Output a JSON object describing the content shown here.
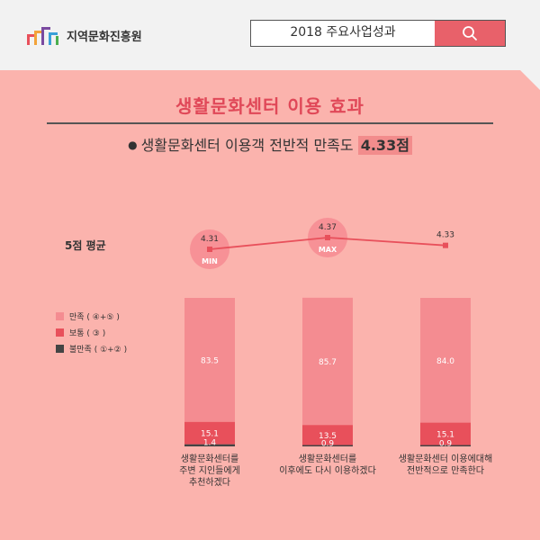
{
  "header": {
    "logo_text": "지역문화진흥원",
    "search_label": "2018 주요사업성과"
  },
  "title": "생활문화센터 이용 효과",
  "subtitle": {
    "prefix": "생활문화센터 이용객 전반적 만족도",
    "highlight": "4.33점"
  },
  "avg_label": "5점 평균",
  "colors": {
    "satisfied": "#f48c91",
    "neutral": "#e8505b",
    "dissatisfied": "#444444",
    "line": "#e8505b",
    "circle": "#f79196"
  },
  "chart_data": {
    "type": "bar",
    "stacked": true,
    "categories": [
      "생활문화센터를 주변 지인들에게 추천하겠다",
      "생활문화센터를 이후에도 다시 이용하겠다",
      "생활문화센터 이용에대해 전반적으로 만족한다"
    ],
    "category_lines": [
      [
        "생활문화센터를",
        "주변 지인들에게",
        "추천하겠다"
      ],
      [
        "생활문화센터를",
        "이후에도 다시 이용하겠다"
      ],
      [
        "생활문화센터 이용에대해",
        "전반적으로 만족한다"
      ]
    ],
    "series": [
      {
        "name": "만족(④+⑤)",
        "legend_label": "만족 ( ④+⑤ )",
        "values": [
          83.5,
          85.7,
          84.0
        ]
      },
      {
        "name": "보통(③)",
        "legend_label": "보통 ( ③ )",
        "values": [
          15.1,
          13.5,
          15.1
        ]
      },
      {
        "name": "불만족(①+②)",
        "legend_label": "불만족 ( ①+② )",
        "values": [
          1.4,
          0.9,
          0.9
        ]
      }
    ],
    "average_line": {
      "values": [
        4.31,
        4.37,
        4.33
      ],
      "labels": [
        "4.31",
        "4.37",
        "4.33"
      ],
      "markers": [
        "MIN",
        "MAX",
        ""
      ]
    },
    "ylim": [
      0,
      100
    ]
  }
}
